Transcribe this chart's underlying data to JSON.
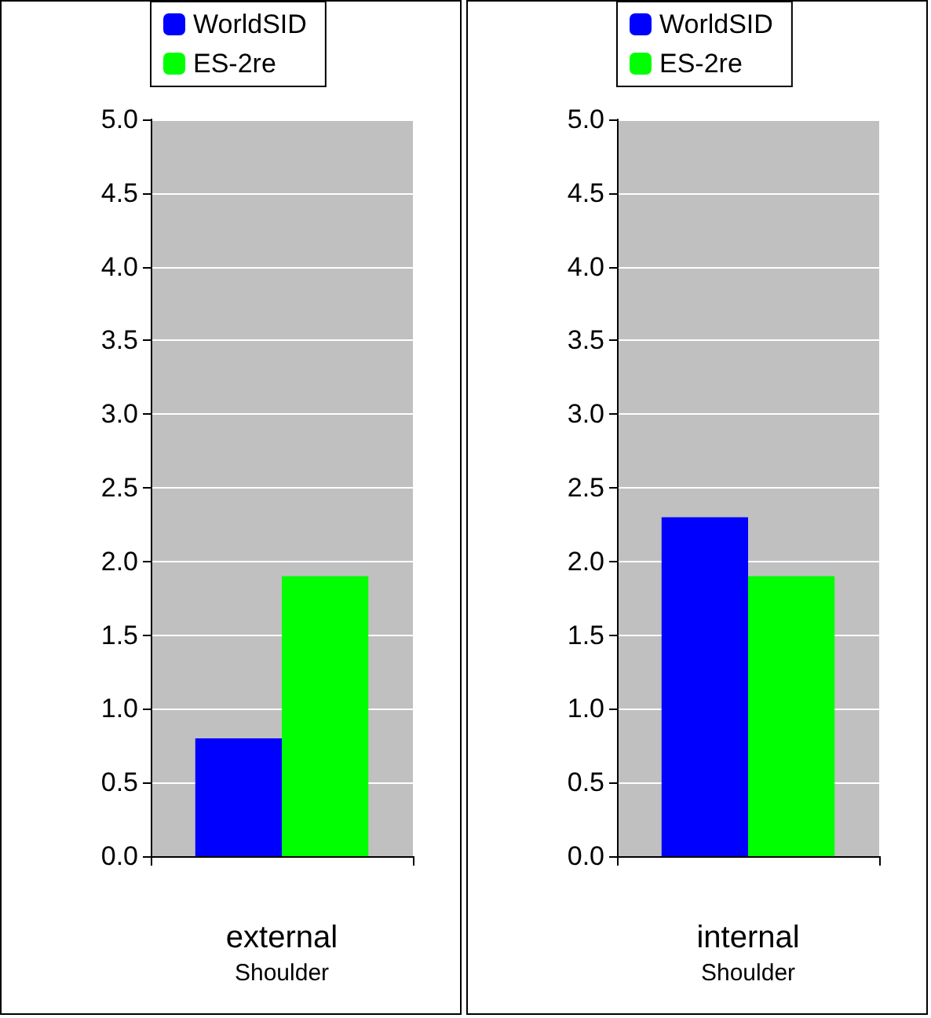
{
  "chart_data": [
    {
      "type": "bar",
      "xlabel": "Shoulder",
      "categories": [
        "external"
      ],
      "series": [
        {
          "name": "WorldSID",
          "color": "#0000ff",
          "values": [
            0.8
          ]
        },
        {
          "name": "ES-2re",
          "color": "#00ff00",
          "values": [
            1.9
          ]
        }
      ],
      "ylim": [
        0,
        5
      ],
      "yticks": [
        {
          "value": 0,
          "label": "0.0"
        },
        {
          "value": 0.5,
          "label": "0.5"
        },
        {
          "value": 1,
          "label": "1.0"
        },
        {
          "value": 1.5,
          "label": "1.5"
        },
        {
          "value": 2,
          "label": "2.0"
        },
        {
          "value": 2.5,
          "label": "2.5"
        },
        {
          "value": 3,
          "label": "3.0"
        },
        {
          "value": 3.5,
          "label": "3.5"
        },
        {
          "value": 4,
          "label": "4.0"
        },
        {
          "value": 4.5,
          "label": "4.5"
        },
        {
          "value": 5,
          "label": "5.0"
        }
      ],
      "grid": "y",
      "legend": "top left"
    },
    {
      "type": "bar",
      "xlabel": "Shoulder",
      "categories": [
        "internal"
      ],
      "series": [
        {
          "name": "WorldSID",
          "color": "#0000ff",
          "values": [
            2.3
          ]
        },
        {
          "name": "ES-2re",
          "color": "#00ff00",
          "values": [
            1.9
          ]
        }
      ],
      "ylim": [
        0,
        5
      ],
      "yticks": [
        {
          "value": 0,
          "label": "0.0"
        },
        {
          "value": 0.5,
          "label": "0.5"
        },
        {
          "value": 1,
          "label": "1.0"
        },
        {
          "value": 1.5,
          "label": "1.5"
        },
        {
          "value": 2,
          "label": "2.0"
        },
        {
          "value": 2.5,
          "label": "2.5"
        },
        {
          "value": 3,
          "label": "3.0"
        },
        {
          "value": 3.5,
          "label": "3.5"
        },
        {
          "value": 4,
          "label": "4.0"
        },
        {
          "value": 4.5,
          "label": "4.5"
        },
        {
          "value": 5,
          "label": "5.0"
        }
      ],
      "grid": "y",
      "legend": "top left"
    }
  ]
}
